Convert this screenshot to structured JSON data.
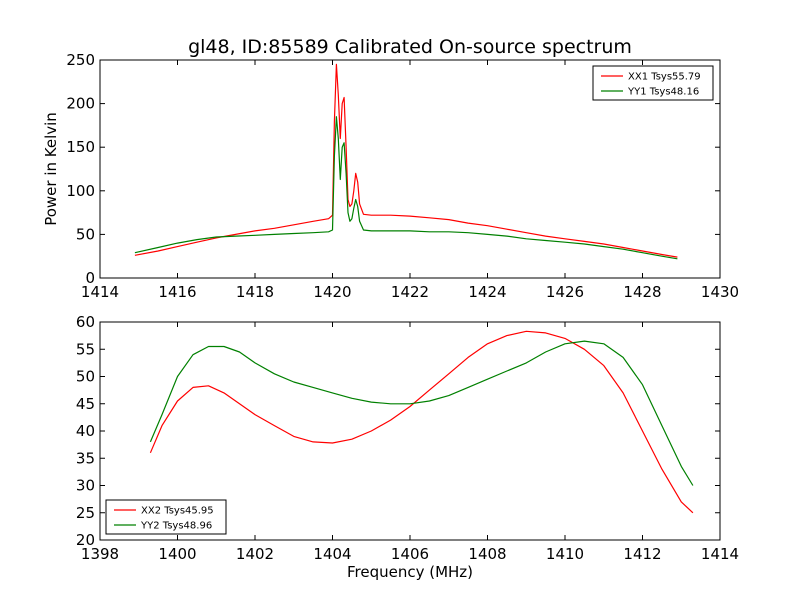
{
  "chart_data": [
    {
      "type": "line",
      "title": "gl48, ID:85589 Calibrated On-source spectrum",
      "xlabel": "",
      "ylabel": "Power in Kelvin",
      "xlim": [
        1414,
        1430
      ],
      "ylim": [
        0,
        250
      ],
      "xticks": [
        "1414",
        "1416",
        "1418",
        "1420",
        "1422",
        "1424",
        "1426",
        "1428",
        "1430"
      ],
      "yticks": [
        "0",
        "50",
        "100",
        "150",
        "200",
        "250"
      ],
      "grid": false,
      "legend_position": "top-right",
      "series": [
        {
          "name": "XX1 Tsys55.79",
          "color": "#ff0000",
          "x": [
            1414.9,
            1415.5,
            1416.0,
            1416.5,
            1417.0,
            1417.5,
            1418.0,
            1418.5,
            1419.0,
            1419.5,
            1419.9,
            1420.0,
            1420.05,
            1420.1,
            1420.15,
            1420.2,
            1420.25,
            1420.3,
            1420.35,
            1420.4,
            1420.45,
            1420.5,
            1420.55,
            1420.6,
            1420.65,
            1420.7,
            1420.8,
            1421.0,
            1421.5,
            1422.0,
            1422.5,
            1423.0,
            1423.5,
            1424.0,
            1424.5,
            1425.0,
            1425.5,
            1426.0,
            1426.5,
            1427.0,
            1427.5,
            1428.0,
            1428.5,
            1428.9
          ],
          "y": [
            26,
            31,
            36,
            41,
            46,
            50,
            54,
            57,
            61,
            65,
            68,
            72,
            180,
            245,
            210,
            160,
            200,
            207,
            150,
            90,
            82,
            85,
            100,
            120,
            110,
            85,
            73,
            72,
            72,
            71,
            69,
            67,
            63,
            60,
            56,
            52,
            48,
            45,
            42,
            39,
            35,
            31,
            27,
            24
          ]
        },
        {
          "name": "YY1 Tsys48.16",
          "color": "#008000",
          "x": [
            1414.9,
            1415.5,
            1416.0,
            1416.5,
            1417.0,
            1417.5,
            1418.0,
            1418.5,
            1419.0,
            1419.5,
            1419.9,
            1420.0,
            1420.05,
            1420.1,
            1420.15,
            1420.2,
            1420.25,
            1420.3,
            1420.35,
            1420.4,
            1420.45,
            1420.5,
            1420.55,
            1420.6,
            1420.65,
            1420.7,
            1420.8,
            1421.0,
            1421.5,
            1422.0,
            1422.5,
            1423.0,
            1423.5,
            1424.0,
            1424.5,
            1425.0,
            1425.5,
            1426.0,
            1426.5,
            1427.0,
            1427.5,
            1428.0,
            1428.5,
            1428.9
          ],
          "y": [
            29,
            35,
            40,
            44,
            47,
            48,
            49,
            50,
            51,
            52,
            53,
            55,
            140,
            185,
            160,
            113,
            150,
            155,
            120,
            75,
            65,
            68,
            80,
            90,
            82,
            65,
            55,
            54,
            54,
            54,
            53,
            53,
            52,
            50,
            48,
            45,
            43,
            41,
            39,
            36,
            33,
            29,
            25,
            22
          ]
        }
      ]
    },
    {
      "type": "line",
      "title": "",
      "xlabel": "Frequency (MHz)",
      "ylabel": "",
      "xlim": [
        1398,
        1414
      ],
      "ylim": [
        20,
        60
      ],
      "xticks": [
        "1398",
        "1400",
        "1402",
        "1404",
        "1406",
        "1408",
        "1410",
        "1412",
        "1414"
      ],
      "yticks": [
        "20",
        "25",
        "30",
        "35",
        "40",
        "45",
        "50",
        "55",
        "60"
      ],
      "grid": false,
      "legend_position": "bottom-left",
      "series": [
        {
          "name": "XX2 Tsys45.95",
          "color": "#ff0000",
          "x": [
            1399.3,
            1399.6,
            1400.0,
            1400.4,
            1400.8,
            1401.2,
            1401.6,
            1402.0,
            1402.5,
            1403.0,
            1403.5,
            1404.0,
            1404.5,
            1405.0,
            1405.5,
            1406.0,
            1406.5,
            1407.0,
            1407.5,
            1408.0,
            1408.5,
            1409.0,
            1409.5,
            1410.0,
            1410.5,
            1411.0,
            1411.5,
            1412.0,
            1412.5,
            1413.0,
            1413.3
          ],
          "y": [
            36,
            41,
            45.5,
            48,
            48.3,
            47,
            45,
            43,
            41,
            39,
            38,
            37.8,
            38.5,
            40,
            42,
            44.5,
            47.5,
            50.5,
            53.5,
            56,
            57.5,
            58.3,
            58,
            57,
            55,
            52,
            47,
            40,
            33,
            27,
            25
          ]
        },
        {
          "name": "YY2 Tsys48.96",
          "color": "#008000",
          "x": [
            1399.3,
            1399.6,
            1400.0,
            1400.4,
            1400.8,
            1401.2,
            1401.6,
            1402.0,
            1402.5,
            1403.0,
            1403.5,
            1404.0,
            1404.5,
            1405.0,
            1405.5,
            1406.0,
            1406.5,
            1407.0,
            1407.5,
            1408.0,
            1408.5,
            1409.0,
            1409.5,
            1410.0,
            1410.5,
            1411.0,
            1411.5,
            1412.0,
            1412.5,
            1413.0,
            1413.3
          ],
          "y": [
            38,
            43,
            50,
            54,
            55.5,
            55.5,
            54.5,
            52.5,
            50.5,
            49,
            48,
            47,
            46,
            45.3,
            45,
            45,
            45.5,
            46.5,
            48,
            49.5,
            51,
            52.5,
            54.5,
            56,
            56.5,
            56,
            53.5,
            48.5,
            41,
            33.5,
            30
          ]
        }
      ]
    }
  ]
}
